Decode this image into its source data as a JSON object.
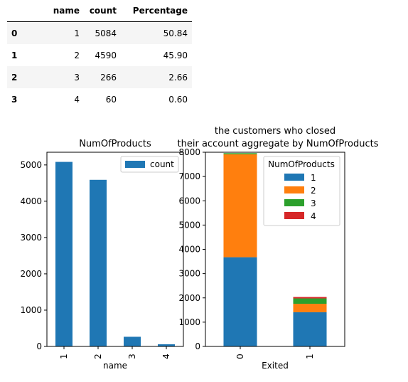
{
  "table": {
    "columns": [
      "",
      "name",
      "count",
      "Percentage"
    ],
    "rows": [
      {
        "index": "0",
        "name": "1",
        "count": "5084",
        "pct": "50.84"
      },
      {
        "index": "1",
        "name": "2",
        "count": "4590",
        "pct": "45.90"
      },
      {
        "index": "2",
        "name": "3",
        "count": "266",
        "pct": "2.66"
      },
      {
        "index": "3",
        "name": "4",
        "count": "60",
        "pct": "0.60"
      }
    ]
  },
  "colors": {
    "blue": "#1f77b4",
    "orange": "#ff7f0e",
    "green": "#2ca02c",
    "red": "#d62728"
  },
  "chart_data": [
    {
      "type": "bar",
      "title": "NumOfProducts",
      "xlabel": "name",
      "ylabel": "",
      "categories": [
        "1",
        "2",
        "3",
        "4"
      ],
      "series": [
        {
          "name": "count",
          "values": [
            5084,
            4590,
            266,
            60
          ]
        }
      ],
      "ylim": [
        0,
        5350
      ],
      "yticks": [
        "0",
        "1000",
        "2000",
        "3000",
        "4000",
        "5000"
      ],
      "legend": "top-right"
    },
    {
      "type": "bar",
      "stacked": true,
      "title_line1": "the customers who closed",
      "title_line2": "their account aggregate by NumOfProducts",
      "xlabel": "Exited",
      "ylabel": "",
      "categories": [
        "0",
        "1"
      ],
      "legend_title": "NumOfProducts",
      "legend": "top-right",
      "series": [
        {
          "name": "1",
          "values": [
            3675,
            1409
          ]
        },
        {
          "name": "2",
          "values": [
            4242,
            348
          ]
        },
        {
          "name": "3",
          "values": [
            46,
            220
          ]
        },
        {
          "name": "4",
          "values": [
            0,
            60
          ]
        }
      ],
      "ylim": [
        0,
        8000
      ],
      "yticks": [
        "0",
        "1000",
        "2000",
        "3000",
        "4000",
        "5000",
        "6000",
        "7000",
        "8000"
      ]
    }
  ]
}
